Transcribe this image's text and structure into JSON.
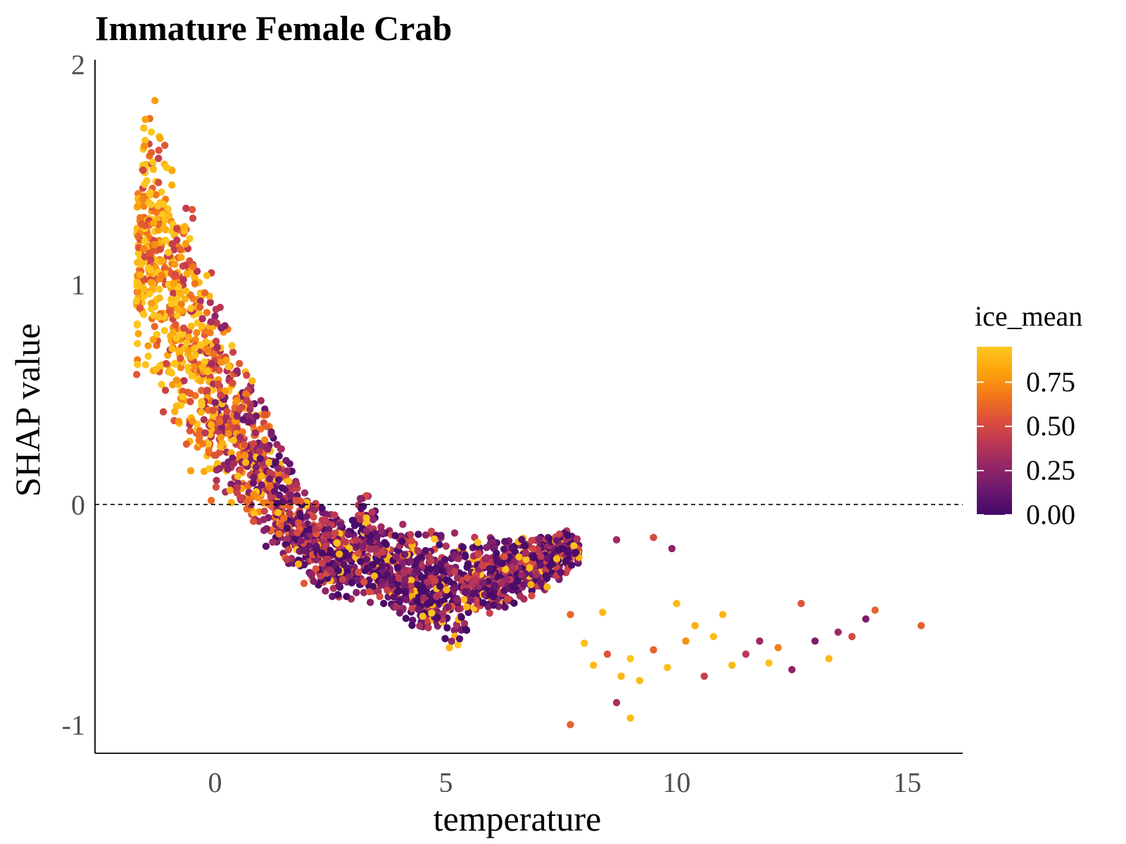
{
  "chart_data": {
    "type": "scatter",
    "title": "Immature Female Crab",
    "xlabel": "temperature",
    "ylabel": "SHAP value",
    "xlim": [
      -2.6,
      16.2
    ],
    "ylim": [
      -1.13,
      2.02
    ],
    "x_ticks": [
      0,
      5,
      10,
      15
    ],
    "x_tick_labels": [
      "0",
      "5",
      "10",
      "15"
    ],
    "y_ticks": [
      -1,
      0,
      1,
      2
    ],
    "y_tick_labels": [
      "-1",
      "0",
      "1",
      "2"
    ],
    "reference_line": {
      "y": 0,
      "style": "dashed"
    },
    "grid": false,
    "legend": {
      "title": "ice_mean",
      "placement": "right",
      "type": "colorbar",
      "range": [
        0,
        0.95
      ],
      "ticks": [
        0.0,
        0.25,
        0.5,
        0.75
      ],
      "tick_labels": [
        "0.00",
        "0.25",
        "0.50",
        "0.75"
      ],
      "colors": [
        "#420a68",
        "#6a176e",
        "#932667",
        "#bc3754",
        "#dd513a",
        "#f37819",
        "#fca50a",
        "#fcc61f"
      ]
    },
    "point_density_profile": {
      "temperature": [
        -1.7,
        -1.5,
        -1.3,
        -1.1,
        -0.9,
        -0.7,
        -0.5,
        -0.3,
        -0.1,
        0.1,
        0.3,
        0.5,
        0.7,
        0.9,
        1.1,
        1.3,
        1.5,
        1.7,
        1.9,
        2.1,
        2.3,
        2.5,
        2.7,
        2.9,
        3.1,
        3.3,
        3.5,
        3.7,
        3.9,
        4.1,
        4.3,
        4.5,
        4.7,
        4.9,
        5.1,
        5.3,
        5.5,
        5.7,
        5.9,
        6.1,
        6.3,
        6.5,
        6.7,
        6.9,
        7.1,
        7.3,
        7.5,
        7.7,
        7.9
      ],
      "shap_upper": [
        1.57,
        1.89,
        1.85,
        1.8,
        1.62,
        1.48,
        1.4,
        1.28,
        1.12,
        0.95,
        0.82,
        0.72,
        0.62,
        0.55,
        0.5,
        0.35,
        0.28,
        0.2,
        0.12,
        0.05,
        0.01,
        0.0,
        -0.02,
        0.0,
        0.06,
        0.06,
        0.02,
        -0.06,
        -0.08,
        -0.08,
        -0.08,
        -0.1,
        -0.1,
        -0.1,
        -0.1,
        -0.1,
        -0.1,
        -0.1,
        -0.11,
        -0.12,
        -0.13,
        -0.12,
        -0.12,
        -0.12,
        -0.12,
        -0.12,
        -0.11,
        -0.11,
        -0.16
      ],
      "shap_lower": [
        0.55,
        0.6,
        0.42,
        0.32,
        0.25,
        0.18,
        0.12,
        0.05,
        0.0,
        -0.02,
        -0.04,
        -0.07,
        -0.1,
        -0.15,
        -0.2,
        -0.25,
        -0.3,
        -0.35,
        -0.37,
        -0.39,
        -0.41,
        -0.43,
        -0.44,
        -0.45,
        -0.45,
        -0.45,
        -0.45,
        -0.5,
        -0.55,
        -0.58,
        -0.6,
        -0.62,
        -0.64,
        -0.66,
        -0.68,
        -0.65,
        -0.6,
        -0.55,
        -0.52,
        -0.52,
        -0.5,
        -0.48,
        -0.46,
        -0.42,
        -0.4,
        -0.38,
        -0.35,
        -0.3,
        -0.28
      ]
    },
    "scattered_points": [
      [
        7.7,
        -0.5,
        0.62
      ],
      [
        8.0,
        -0.63,
        0.92
      ],
      [
        8.2,
        -0.73,
        0.9
      ],
      [
        8.5,
        -0.68,
        0.55
      ],
      [
        8.8,
        -0.78,
        0.88
      ],
      [
        9.0,
        -0.7,
        0.95
      ],
      [
        9.2,
        -0.8,
        0.9
      ],
      [
        9.5,
        -0.66,
        0.6
      ],
      [
        9.8,
        -0.74,
        0.92
      ],
      [
        10.0,
        -0.45,
        0.9
      ],
      [
        10.2,
        -0.62,
        0.75
      ],
      [
        10.4,
        -0.55,
        0.85
      ],
      [
        10.6,
        -0.78,
        0.45
      ],
      [
        10.8,
        -0.6,
        0.92
      ],
      [
        11.0,
        -0.5,
        0.88
      ],
      [
        11.2,
        -0.73,
        0.9
      ],
      [
        11.5,
        -0.68,
        0.4
      ],
      [
        11.8,
        -0.62,
        0.3
      ],
      [
        12.0,
        -0.72,
        0.92
      ],
      [
        12.2,
        -0.65,
        0.7
      ],
      [
        12.5,
        -0.75,
        0.25
      ],
      [
        12.7,
        -0.45,
        0.55
      ],
      [
        13.0,
        -0.62,
        0.2
      ],
      [
        13.3,
        -0.7,
        0.9
      ],
      [
        13.5,
        -0.58,
        0.3
      ],
      [
        13.8,
        -0.6,
        0.5
      ],
      [
        14.1,
        -0.52,
        0.2
      ],
      [
        14.3,
        -0.48,
        0.6
      ],
      [
        15.3,
        -0.55,
        0.6
      ],
      [
        7.7,
        -1.0,
        0.6
      ],
      [
        8.7,
        -0.9,
        0.35
      ],
      [
        9.0,
        -0.97,
        0.9
      ],
      [
        8.4,
        -0.49,
        0.9
      ],
      [
        9.9,
        -0.2,
        0.25
      ],
      [
        9.5,
        -0.15,
        0.5
      ],
      [
        8.7,
        -0.16,
        0.3
      ]
    ]
  }
}
